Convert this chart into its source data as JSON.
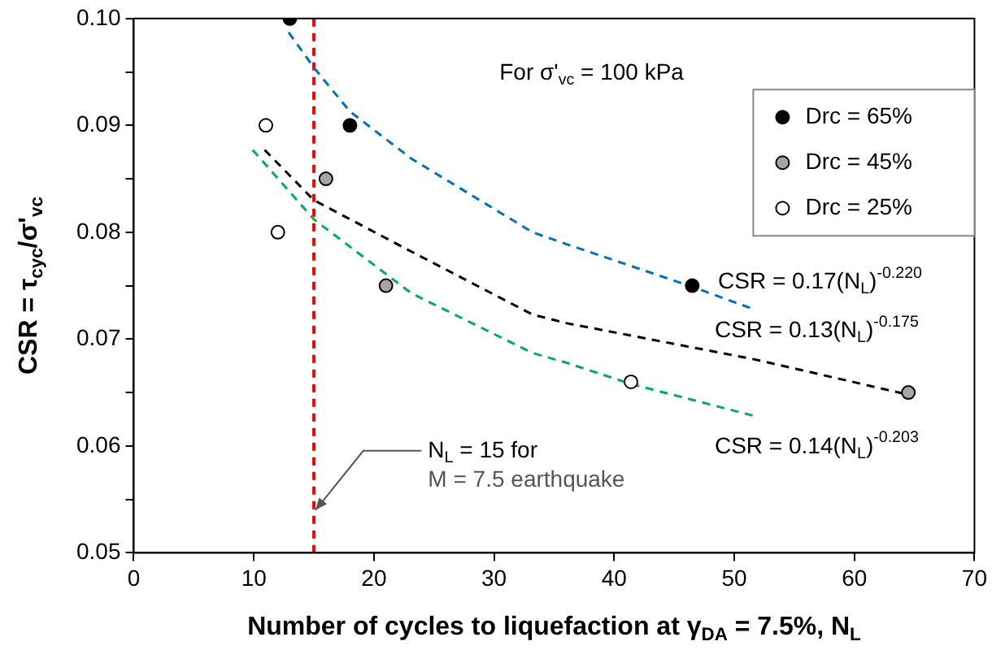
{
  "chart_data": {
    "type": "scatter",
    "xlabel": "Number of cycles to liquefaction at γ$_{DA}$ = 7.5%, N$_{L}$",
    "ylabel": "CSR = τ$_{cyc}$/σ'$_{vc}$",
    "xlim": [
      0,
      70
    ],
    "xticks": [
      0,
      10,
      20,
      30,
      40,
      50,
      60,
      70
    ],
    "ylim": [
      0.05,
      0.1
    ],
    "yticks": [
      0.05,
      {
        "value": 0.055,
        "label": null
      },
      0.06,
      {
        "value": 0.065,
        "label": null
      },
      0.07,
      {
        "value": 0.075,
        "label": null
      },
      0.08,
      {
        "value": 0.085,
        "label": null
      },
      0.09,
      {
        "value": 0.095,
        "label": null
      },
      {
        "value": 0.1,
        "label": "0.10"
      }
    ],
    "legend": "top right",
    "marker": "circle",
    "series": [
      {
        "name": "Drc = 65%",
        "color": "#000000",
        "x": [
          13,
          18,
          46.5
        ],
        "values": [
          0.1,
          0.09,
          0.075
        ]
      },
      {
        "name": "Drc = 45%",
        "color": "#a6a6a6",
        "x": [
          16,
          21,
          64.5
        ],
        "values": [
          0.085,
          0.075,
          0.065
        ]
      },
      {
        "name": "Drc = 25%",
        "color": "#ffffff",
        "x": [
          11,
          12,
          41.4
        ],
        "values": [
          0.09,
          0.08,
          0.066
        ]
      },
      {
        "type": "line",
        "color": "#0070c0",
        "line_style": "dashed",
        "marker": "none",
        "x": [
          12.9,
          15,
          18,
          23.1,
          33.2,
          36,
          46.5,
          51.6
        ],
        "values": [
          0.0987,
          0.0954,
          0.0913,
          0.0869,
          0.08,
          0.0789,
          0.0749,
          0.0728
        ]
      },
      {
        "type": "line",
        "color": "#000000",
        "line_style": "dashed",
        "marker": "none",
        "x": [
          10.9,
          15,
          23.1,
          33.2,
          36,
          51.7,
          64.5
        ],
        "values": [
          0.0877,
          0.083,
          0.0782,
          0.0723,
          0.0715,
          0.0681,
          0.0648
        ]
      },
      {
        "type": "line",
        "color": "#00b050",
        "line_style": "dashed",
        "marker": "none",
        "x": [
          9.9,
          15,
          23.1,
          33.2,
          36,
          41.4,
          51.7
        ],
        "values": [
          0.0877,
          0.0812,
          0.0743,
          0.0687,
          0.0678,
          0.0658,
          0.0628
        ]
      }
    ],
    "ref_lines": [
      {
        "axis": "x",
        "value": 15,
        "color": "#ff0000",
        "line_style": "dashed"
      }
    ],
    "annotations": [
      "For σ'$_{vc}$ = 100 kPa",
      "CSR = 0.17(N$_{L}$)$^{-0.220}$",
      "CSR = 0.13(N$_{L}$)$^{-0.175}$",
      "CSR = 0.14(N$_{L}$)$^{-0.203}$",
      {
        "text": "N$_{L}$ = 15 for",
        "x": 15,
        "y": 0.054
      },
      "M = 7.5 earthquake"
    ]
  }
}
